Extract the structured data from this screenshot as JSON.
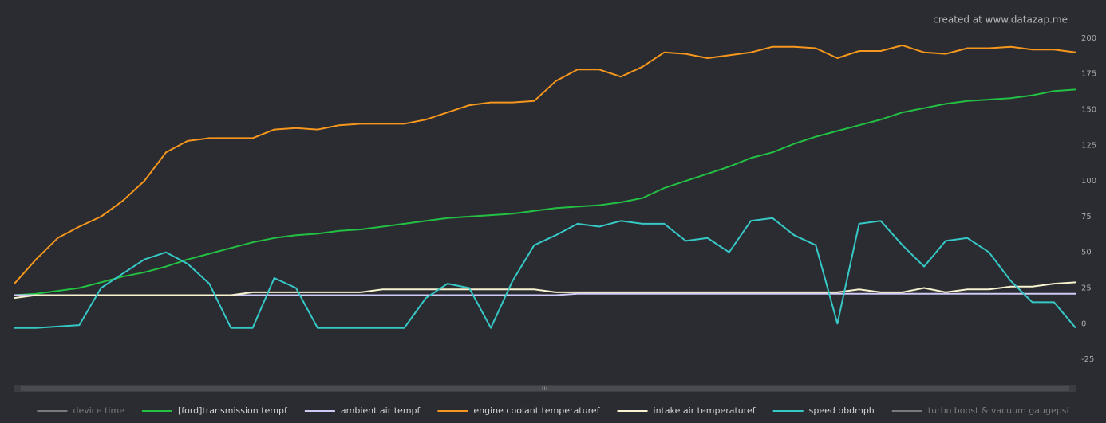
{
  "chart_data": {
    "type": "line",
    "annotation": "created at www.datazap.me",
    "ylim": [
      -40,
      210
    ],
    "yticks": [
      200,
      175,
      150,
      125,
      100,
      75,
      50,
      25,
      0,
      -25
    ],
    "series": [
      {
        "name": "device time",
        "color": "#7a7a7e",
        "hidden": true,
        "values": []
      },
      {
        "name": "[ford]transmission tempf",
        "color": "#22c043",
        "values": [
          20,
          21,
          23,
          25,
          29,
          33,
          36,
          40,
          45,
          49,
          53,
          57,
          60,
          62,
          63,
          65,
          66,
          68,
          70,
          72,
          74,
          75,
          76,
          77,
          79,
          81,
          82,
          83,
          85,
          88,
          95,
          100,
          105,
          110,
          116,
          120,
          126,
          131,
          135,
          139,
          143,
          148,
          151,
          154,
          156,
          157,
          158,
          160,
          163,
          164
        ]
      },
      {
        "name": "ambient air tempf",
        "color": "#cfcaf5",
        "values": [
          20,
          20,
          20,
          20,
          20,
          20,
          20,
          20,
          20,
          20,
          20,
          20,
          20,
          20,
          20,
          20,
          20,
          20,
          20,
          20,
          20,
          20,
          20,
          20,
          20,
          20,
          21,
          21,
          21,
          21,
          21,
          21,
          21,
          21,
          21,
          21,
          21,
          21,
          21,
          21,
          21,
          21,
          21,
          21,
          21,
          21,
          21,
          21,
          21,
          21
        ]
      },
      {
        "name": "engine coolant temperaturef",
        "color": "#f5961d",
        "values": [
          28,
          45,
          60,
          68,
          75,
          86,
          100,
          120,
          128,
          130,
          130,
          130,
          136,
          137,
          136,
          139,
          140,
          140,
          140,
          143,
          148,
          153,
          155,
          155,
          156,
          170,
          178,
          178,
          173,
          180,
          190,
          189,
          186,
          188,
          190,
          194,
          194,
          193,
          186,
          191,
          191,
          195,
          190,
          189,
          193,
          193,
          194,
          192,
          192,
          190
        ]
      },
      {
        "name": "intake air temperaturef",
        "color": "#f7f2cf",
        "values": [
          18,
          20,
          20,
          20,
          20,
          20,
          20,
          20,
          20,
          20,
          20,
          22,
          22,
          22,
          22,
          22,
          22,
          24,
          24,
          24,
          24,
          24,
          24,
          24,
          24,
          22,
          22,
          22,
          22,
          22,
          22,
          22,
          22,
          22,
          22,
          22,
          22,
          22,
          22,
          24,
          22,
          22,
          25,
          22,
          24,
          24,
          26,
          26,
          28,
          29
        ]
      },
      {
        "name": "speed obdmph",
        "color": "#36c8c6",
        "values": [
          -3,
          -3,
          -2,
          -1,
          25,
          35,
          45,
          50,
          42,
          28,
          -3,
          -3,
          32,
          25,
          -3,
          -3,
          -3,
          -3,
          -3,
          18,
          28,
          25,
          -3,
          30,
          55,
          62,
          70,
          68,
          72,
          70,
          70,
          58,
          60,
          50,
          72,
          74,
          62,
          55,
          0,
          70,
          72,
          55,
          40,
          58,
          60,
          50,
          30,
          15,
          15,
          -3
        ]
      },
      {
        "name": "turbo boost & vacuum gaugepsi",
        "color": "#7a7a7e",
        "hidden": true,
        "values": []
      }
    ]
  }
}
